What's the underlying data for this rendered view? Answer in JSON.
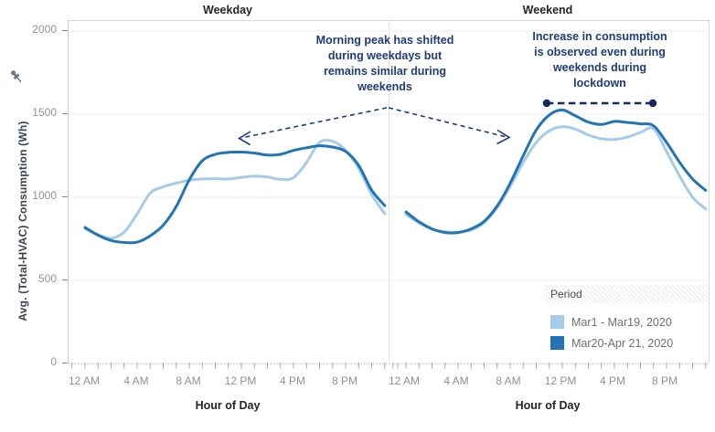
{
  "figure": {
    "panel_titles": [
      "Weekday",
      "Weekend"
    ],
    "y_axis_title": "Avg. (Total-HVAC) Consumption (Wh)",
    "x_axis_title": "Hour of Day"
  },
  "annotations": {
    "weekday": {
      "lines": [
        "Morning peak has shifted",
        "during weekdays but",
        "remains similar during",
        "weekends"
      ]
    },
    "weekend": {
      "lines": [
        "Increase in consumption",
        "is observed even during",
        "weekends during",
        "lockdown"
      ]
    }
  },
  "legend": {
    "title": "Period",
    "items": [
      {
        "label": "Mar1 - Mar19, 2020",
        "color": "#A6CBE8"
      },
      {
        "label": "Mar20-Apr 21, 2020",
        "color": "#2374B5"
      }
    ]
  },
  "colors": {
    "series_light": "#A6CBE8",
    "series_dark": "#2374B5",
    "annotation": "#1F3C78",
    "reference_line": "#16295E",
    "grid": "#ECECEC",
    "zero_grid": "#E6E6E6",
    "hour_tick": "#A0A0A0",
    "minor_dot": "#C6C6C6",
    "tick_label": "#8E9296",
    "title_text": "#23252B",
    "legend_text": "#6F6F6F"
  },
  "chart_data": {
    "type": "line",
    "title": "",
    "xlabel": "Hour of Day",
    "ylabel": "Avg. (Total-HVAC) Consumption (Wh)",
    "ylim": [
      0,
      2060
    ],
    "grid": "horizontal, faint",
    "legend_position": "bottom-right of Weekend panel",
    "y_ticks": [
      0,
      500,
      1000,
      1500,
      2000
    ],
    "x_hours": [
      0,
      1,
      2,
      3,
      4,
      5,
      6,
      7,
      8,
      9,
      10,
      11,
      12,
      13,
      14,
      15,
      16,
      17,
      18,
      19,
      20,
      21,
      22,
      23
    ],
    "x_tick_labels": [
      {
        "hour": 0,
        "label": "12 AM"
      },
      {
        "hour": 4,
        "label": "4 AM"
      },
      {
        "hour": 8,
        "label": "8 AM"
      },
      {
        "hour": 12,
        "label": "12 PM"
      },
      {
        "hour": 16,
        "label": "4 PM"
      },
      {
        "hour": 20,
        "label": "8 PM"
      }
    ],
    "panels": [
      {
        "title": "Weekday",
        "series": [
          {
            "name": "Mar1 - Mar19, 2020",
            "color": "#A6CBE8",
            "values": [
              810,
              775,
              754,
              790,
              900,
              1025,
              1063,
              1085,
              1103,
              1110,
              1112,
              1110,
              1120,
              1127,
              1122,
              1108,
              1118,
              1210,
              1330,
              1337,
              1283,
              1175,
              1016,
              901
            ]
          },
          {
            "name": "Mar20-Apr 21, 2020",
            "color": "#2374B5",
            "values": [
              818,
              772,
              740,
              728,
              730,
              768,
              832,
              945,
              1105,
              1220,
              1258,
              1270,
              1272,
              1266,
              1254,
              1258,
              1282,
              1298,
              1310,
              1302,
              1276,
              1192,
              1043,
              950
            ]
          }
        ]
      },
      {
        "title": "Weekend",
        "series": [
          {
            "name": "Mar1 - Mar19, 2020",
            "color": "#A6CBE8",
            "values": [
              898,
              845,
              808,
              792,
              790,
              803,
              848,
              938,
              1065,
              1210,
              1330,
              1400,
              1425,
              1410,
              1375,
              1352,
              1348,
              1362,
              1390,
              1412,
              1275,
              1128,
              1000,
              930
            ]
          },
          {
            "name": "Mar20-Apr 21, 2020",
            "color": "#2374B5",
            "values": [
              912,
              852,
              810,
              788,
              788,
              810,
              855,
              948,
              1085,
              1250,
              1405,
              1495,
              1525,
              1490,
              1452,
              1438,
              1456,
              1450,
              1442,
              1430,
              1330,
              1210,
              1110,
              1042
            ]
          }
        ]
      }
    ],
    "reference_line": {
      "panel": "Weekend",
      "value": 1566,
      "hour_from": 10.8,
      "hour_to": 18.95,
      "style": "dashed with round endpoints",
      "color": "#16295E"
    }
  }
}
